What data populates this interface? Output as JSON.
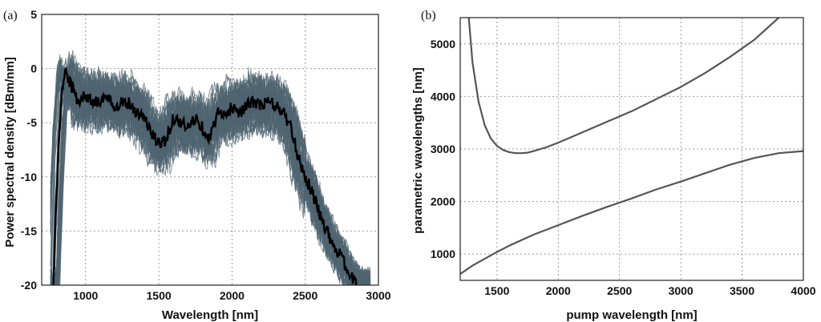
{
  "chart_data": [
    {
      "type": "line",
      "panel_label": "(a)",
      "xlabel": "Wavelength [nm]",
      "ylabel": "Power spectral density [dBm/nm]",
      "xlim": [
        700,
        3000
      ],
      "ylim": [
        -20,
        5
      ],
      "xticks": [
        1000,
        1500,
        2000,
        2500,
        3000
      ],
      "yticks": [
        -20,
        -15,
        -10,
        -5,
        0,
        5
      ],
      "grid": true,
      "colors": {
        "ensemble": "#4f6470",
        "mean": "#000000"
      },
      "ensemble_count": 60,
      "series": [
        {
          "name": "mean spectrum",
          "x": [
            780,
            800,
            820,
            840,
            860,
            880,
            900,
            950,
            1000,
            1050,
            1100,
            1150,
            1200,
            1250,
            1300,
            1350,
            1400,
            1450,
            1500,
            1550,
            1600,
            1650,
            1700,
            1750,
            1800,
            1850,
            1900,
            1950,
            2000,
            2050,
            2100,
            2150,
            2200,
            2250,
            2300,
            2350,
            2400,
            2450,
            2500,
            2550,
            2600,
            2650,
            2700,
            2750,
            2800,
            2850
          ],
          "y": [
            -20,
            -12,
            -6,
            -2,
            0,
            -1,
            -1.5,
            -3,
            -2.5,
            -3,
            -3,
            -2.8,
            -3.5,
            -3,
            -3.2,
            -4,
            -4.5,
            -6,
            -7,
            -6.5,
            -4.5,
            -5,
            -5.5,
            -4.5,
            -5.5,
            -6.5,
            -4,
            -4.5,
            -3.5,
            -4,
            -3.5,
            -3,
            -3.5,
            -3,
            -3.5,
            -4,
            -5.5,
            -8,
            -10,
            -11.5,
            -13.5,
            -15,
            -16.5,
            -17.5,
            -19,
            -20
          ]
        }
      ]
    },
    {
      "type": "line",
      "panel_label": "(b)",
      "xlabel": "pump wavelength [nm]",
      "ylabel": "parametric wavelengths [nm]",
      "xlim": [
        1200,
        4000
      ],
      "ylim": [
        500,
        5500
      ],
      "xticks": [
        1500,
        2000,
        2500,
        3000,
        3500,
        4000
      ],
      "yticks": [
        1000,
        2000,
        3000,
        4000,
        5000
      ],
      "grid": true,
      "colors": {
        "line": "#555555"
      },
      "series": [
        {
          "name": "upper parametric branch",
          "x": [
            1270,
            1300,
            1350,
            1400,
            1450,
            1500,
            1550,
            1600,
            1650,
            1700,
            1750,
            1800,
            1900,
            2000,
            2200,
            2400,
            2600,
            2800,
            3000,
            3200,
            3400,
            3600,
            3800
          ],
          "y": [
            5500,
            4650,
            3900,
            3450,
            3200,
            3060,
            2980,
            2940,
            2920,
            2920,
            2930,
            2960,
            3030,
            3120,
            3320,
            3520,
            3720,
            3950,
            4180,
            4450,
            4750,
            5080,
            5500
          ]
        },
        {
          "name": "lower parametric branch",
          "x": [
            1200,
            1300,
            1400,
            1500,
            1600,
            1800,
            2000,
            2200,
            2400,
            2600,
            2800,
            3000,
            3200,
            3400,
            3600,
            3800,
            4000
          ],
          "y": [
            620,
            780,
            910,
            1040,
            1160,
            1370,
            1550,
            1730,
            1900,
            2060,
            2230,
            2380,
            2540,
            2700,
            2830,
            2920,
            2960
          ]
        }
      ]
    }
  ]
}
